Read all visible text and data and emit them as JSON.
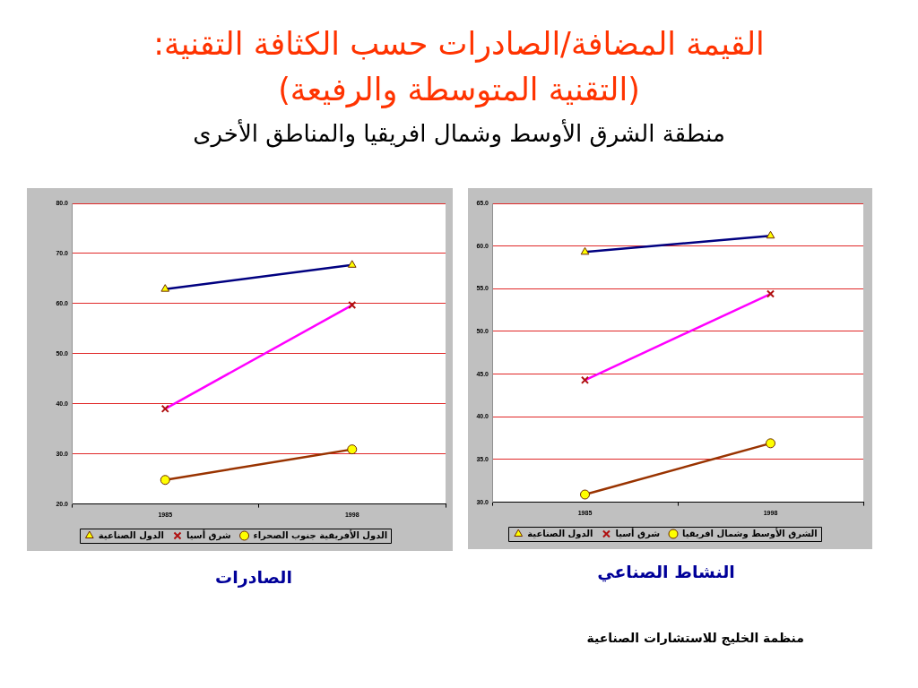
{
  "chart_data": [
    {
      "type": "other",
      "title": "القيمة المضافة/الصادرات حسب الكثافة التقنية:\n(التقنية المتوسطة والرفيعة)",
      "subtitle": "منطقة الشرق الأوسط وشمال افريقيا والمناطق الأخرى"
    },
    {
      "type": "line",
      "title": "الصادرات",
      "categories": [
        "1985",
        "1998"
      ],
      "series": [
        {
          "name": "الدول الصناعية",
          "color": "#000080",
          "marker": "triangle",
          "values": [
            62.9,
            67.7
          ]
        },
        {
          "name": "شرق أسيا",
          "color": "#ff00ff",
          "marker": "cross",
          "values": [
            39.0,
            59.7
          ]
        },
        {
          "name": "الدول الأفريقية جنوب الصحراء",
          "color": "#993300",
          "marker": "circle",
          "values": [
            24.8,
            30.9
          ]
        }
      ],
      "ylim": [
        20,
        80
      ],
      "yticks": [
        {
          "value": 20,
          "label": "20.0"
        },
        {
          "value": 30,
          "label": "30.0"
        },
        {
          "value": 40,
          "label": "40.0"
        },
        {
          "value": 50,
          "label": "50.0"
        },
        {
          "value": 60,
          "label": "60.0"
        },
        {
          "value": 70,
          "label": "70.0"
        },
        {
          "value": 80,
          "label": "80.0"
        }
      ],
      "grid": "y",
      "legend": "bottom"
    },
    {
      "type": "line",
      "title": "النشاط الصناعي",
      "categories": [
        "1985",
        "1998"
      ],
      "series": [
        {
          "name": "الدول الصناعية",
          "color": "#000080",
          "marker": "triangle",
          "values": [
            59.3,
            61.2
          ]
        },
        {
          "name": "شرق أسيا",
          "color": "#ff00ff",
          "marker": "cross",
          "values": [
            44.3,
            54.4
          ]
        },
        {
          "name": "الشرق الأوسط وشمال افريقيا",
          "color": "#993300",
          "marker": "circle",
          "values": [
            30.9,
            36.9
          ]
        }
      ],
      "ylim": [
        30,
        65
      ],
      "yticks": [
        {
          "value": 30,
          "label": "30.0"
        },
        {
          "value": 35,
          "label": "35.0"
        },
        {
          "value": 40,
          "label": "40.0"
        },
        {
          "value": 45,
          "label": "45.0"
        },
        {
          "value": 50,
          "label": "50.0"
        },
        {
          "value": 55,
          "label": "55.0"
        },
        {
          "value": 60,
          "label": "60.0"
        },
        {
          "value": 65,
          "label": "65.0"
        }
      ],
      "grid": "y",
      "legend": "bottom",
      "annotations": [
        "منظمة الخليج للاستشارات الصناعية"
      ]
    }
  ]
}
